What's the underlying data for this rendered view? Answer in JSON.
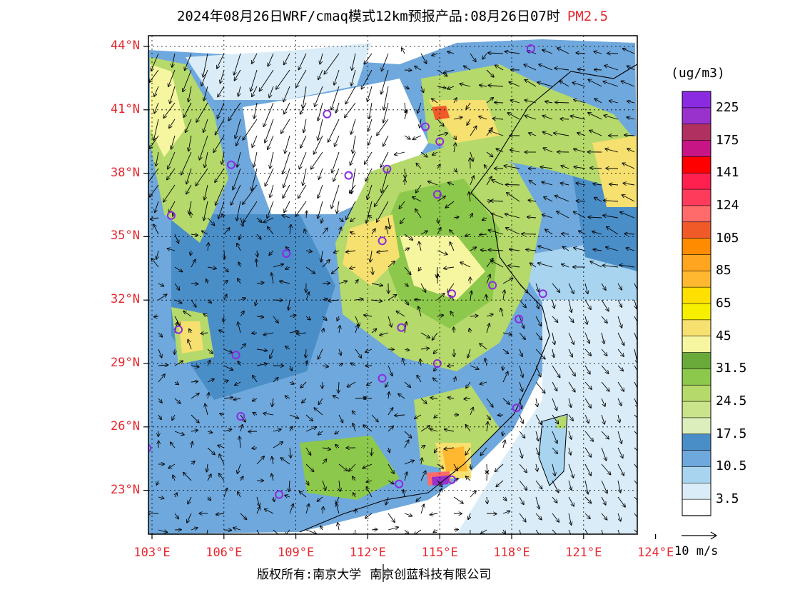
{
  "title": {
    "main": "2024年08月26日WRF/cmaq模式12km预报产品:08月26日07时",
    "pollutant": "PM2.5"
  },
  "axes": {
    "lat_labels": [
      "44°N",
      "41°N",
      "38°N",
      "35°N",
      "32°N",
      "29°N",
      "26°N",
      "23°N"
    ],
    "lon_labels": [
      "103°E",
      "106°E",
      "109°E",
      "112°E",
      "115°E",
      "118°E",
      "121°E",
      "124°E"
    ]
  },
  "colorbar": {
    "unit": "(ug/m3)",
    "labels": [
      "225",
      "175",
      "141",
      "124",
      "105",
      "85",
      "65",
      "45",
      "31.5",
      "24.5",
      "17.5",
      "10.5",
      "3.5"
    ],
    "colors": [
      "#8a2be2",
      "#9932cc",
      "#b03060",
      "#c71585",
      "#ff0000",
      "#ff2050",
      "#ff3b5c",
      "#ff6a6a",
      "#f05a28",
      "#ff8c00",
      "#ffa520",
      "#ffb830",
      "#ffe000",
      "#f6f000",
      "#f5e070",
      "#f6f6a0",
      "#6aaa3a",
      "#8cc84b",
      "#b5d96a",
      "#c9e48a",
      "#dbeebb",
      "#4a8ec8",
      "#6fa8dc",
      "#a8d4f0",
      "#d9ecf8",
      "#ffffff"
    ]
  },
  "wind_reference": "10 m/s",
  "copyright": {
    "owner1": "版权所有:南京大学",
    "owner2": "南京创蓝科技有限公司"
  },
  "stations": [
    {
      "lon": 118.8,
      "lat": 43.9
    },
    {
      "lon": 110.3,
      "lat": 40.8
    },
    {
      "lon": 114.4,
      "lat": 40.2
    },
    {
      "lon": 115.0,
      "lat": 39.5
    },
    {
      "lon": 106.3,
      "lat": 38.4
    },
    {
      "lon": 111.2,
      "lat": 37.9
    },
    {
      "lon": 112.8,
      "lat": 38.2
    },
    {
      "lon": 114.9,
      "lat": 37.0
    },
    {
      "lon": 103.8,
      "lat": 36.0
    },
    {
      "lon": 112.6,
      "lat": 34.8
    },
    {
      "lon": 108.6,
      "lat": 34.2
    },
    {
      "lon": 115.5,
      "lat": 32.3
    },
    {
      "lon": 117.2,
      "lat": 32.7
    },
    {
      "lon": 119.3,
      "lat": 32.3
    },
    {
      "lon": 118.3,
      "lat": 31.1
    },
    {
      "lon": 113.4,
      "lat": 30.7
    },
    {
      "lon": 104.1,
      "lat": 30.6
    },
    {
      "lon": 106.5,
      "lat": 29.4
    },
    {
      "lon": 114.9,
      "lat": 29.0
    },
    {
      "lon": 112.6,
      "lat": 28.3
    },
    {
      "lon": 118.2,
      "lat": 26.9
    },
    {
      "lon": 106.7,
      "lat": 26.5
    },
    {
      "lon": 102.8,
      "lat": 25.0
    },
    {
      "lon": 113.3,
      "lat": 23.3
    },
    {
      "lon": 108.3,
      "lat": 22.8
    },
    {
      "lon": 115.5,
      "lat": 23.5
    }
  ]
}
